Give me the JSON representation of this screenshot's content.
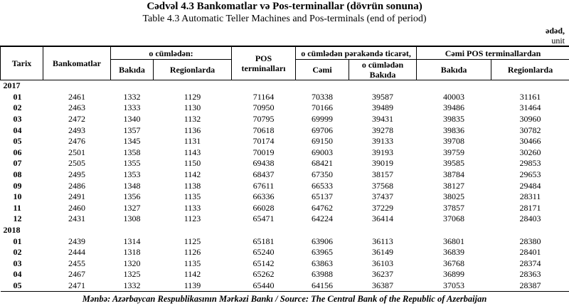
{
  "header": {
    "title": "Cədvəl 4.3 Bankomatlar və Pos-terminallar (dövrün sonuna)",
    "subtitle": "Table 4.3 Automatic Teller Machines and Pos-terminals (end of period)",
    "unit": [
      "ədəd,",
      "unit"
    ]
  },
  "table": {
    "header_top": [
      "Tarix",
      "Bankomatlar",
      "o cümlədən:",
      "POS terminalları",
      "o cümlədən pərakəndə ticarət,",
      "Cəmi POS terminallardan"
    ],
    "header_sub": [
      "Bakıda",
      "Regionlarda",
      "Cəmi",
      "o cümlədən Bakıda",
      "Bakıda",
      "Regionlarda"
    ],
    "groups": [
      {
        "year": "2017",
        "rows": [
          [
            "01",
            2461,
            1332,
            1129,
            71164,
            70338,
            39587,
            40003,
            31161
          ],
          [
            "02",
            2463,
            1333,
            1130,
            70950,
            70166,
            39489,
            39486,
            31464
          ],
          [
            "03",
            2472,
            1340,
            1132,
            70795,
            69999,
            39431,
            39835,
            30960
          ],
          [
            "04",
            2493,
            1357,
            1136,
            70618,
            69706,
            39278,
            39836,
            30782
          ],
          [
            "05",
            2476,
            1345,
            1131,
            70174,
            69150,
            39133,
            39708,
            30466
          ],
          [
            "06",
            2501,
            1358,
            1143,
            70019,
            69003,
            39193,
            39759,
            30260
          ],
          [
            "07",
            2505,
            1355,
            1150,
            69438,
            68421,
            39019,
            39585,
            29853
          ],
          [
            "08",
            2495,
            1353,
            1142,
            68437,
            67350,
            38157,
            38784,
            29653
          ],
          [
            "09",
            2486,
            1348,
            1138,
            67611,
            66533,
            37568,
            38127,
            29484
          ],
          [
            "10",
            2491,
            1356,
            1135,
            66336,
            65137,
            37437,
            38025,
            28311
          ],
          [
            "11",
            2460,
            1327,
            1133,
            66028,
            64762,
            37229,
            37857,
            28171
          ],
          [
            "12",
            2431,
            1308,
            1123,
            65471,
            64224,
            36414,
            37068,
            28403
          ]
        ]
      },
      {
        "year": "2018",
        "rows": [
          [
            "01",
            2439,
            1314,
            1125,
            65181,
            63906,
            36113,
            36801,
            28380
          ],
          [
            "02",
            2444,
            1318,
            1126,
            65240,
            63965,
            36149,
            36839,
            28401
          ],
          [
            "03",
            2455,
            1320,
            1135,
            65142,
            63863,
            36103,
            36768,
            28374
          ],
          [
            "04",
            2467,
            1325,
            1142,
            65262,
            63988,
            36237,
            36899,
            28363
          ],
          [
            "05",
            2471,
            1332,
            1139,
            65440,
            64156,
            36387,
            37053,
            28387
          ]
        ]
      }
    ]
  },
  "source": "Mənbə: Azərbaycan Respublikasının Mərkəzi Bankı / Source: The Central Bank of the Republic of Azerbaijan"
}
